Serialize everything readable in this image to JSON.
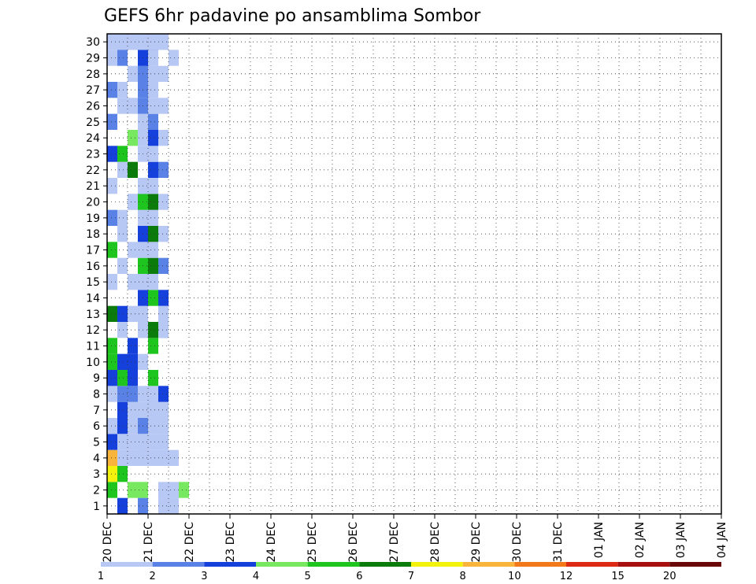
{
  "chart_data": {
    "type": "heatmap",
    "title": "GEFS 6hr padavine po ansamblima Sombor",
    "xlabel": "",
    "ylabel": "",
    "x_ticks": [
      "20 DEC",
      "21 DEC",
      "22 DEC",
      "23 DEC",
      "24 DEC",
      "25 DEC",
      "26 DEC",
      "27 DEC",
      "28 DEC",
      "29 DEC",
      "30 DEC",
      "31 DEC",
      "01 JAN",
      "02 JAN",
      "03 JAN",
      "04 JAN"
    ],
    "x_range_steps": [
      0,
      60
    ],
    "y_ticks": [
      1,
      2,
      3,
      4,
      5,
      6,
      7,
      8,
      9,
      10,
      11,
      12,
      13,
      14,
      15,
      16,
      17,
      18,
      19,
      20,
      21,
      22,
      23,
      24,
      25,
      26,
      27,
      28,
      29,
      30
    ],
    "y_range": [
      0,
      30
    ],
    "grid": true,
    "colorbar": {
      "labels": [
        "1",
        "2",
        "3",
        "4",
        "5",
        "6",
        "7",
        "8",
        "10",
        "12",
        "15",
        "20"
      ],
      "colors": [
        "#b8c8f4",
        "#5a82e6",
        "#1640dc",
        "#78e860",
        "#1ec51e",
        "#0b7b0b",
        "#f2f20c",
        "#f9b43c",
        "#f3781a",
        "#dc2a14",
        "#a80f0f",
        "#6a0808"
      ]
    },
    "cells": [
      [
        1,
        0,
        3
      ],
      [
        2,
        1,
        4
      ],
      [
        2,
        3,
        1
      ],
      [
        1,
        4,
        1
      ],
      [
        3,
        11,
        1
      ],
      [
        2,
        19,
        1
      ],
      [
        3,
        27,
        2
      ],
      [
        6,
        0,
        1
      ],
      [
        1,
        29,
        2
      ],
      [
        0,
        1,
        5
      ],
      [
        3,
        1,
        4
      ],
      [
        3,
        3,
        1
      ],
      [
        2,
        4,
        1
      ],
      [
        5,
        0,
        1
      ],
      [
        3,
        19,
        1
      ],
      [
        6,
        28,
        1
      ],
      [
        0,
        2,
        7
      ],
      [
        1,
        2,
        5
      ],
      [
        3,
        3,
        1
      ],
      [
        2,
        4,
        1
      ],
      [
        5,
        1,
        1
      ],
      [
        6,
        1,
        1
      ],
      [
        7,
        1,
        4
      ],
      [
        6,
        0,
        1
      ],
      [
        0,
        3,
        8
      ],
      [
        1,
        3,
        1
      ],
      [
        3,
        3,
        1
      ],
      [
        1,
        5,
        1
      ],
      [
        4,
        4,
        1
      ],
      [
        5,
        3,
        1
      ],
      [
        3,
        0,
        2
      ],
      [
        5,
        0,
        1
      ],
      [
        0,
        4,
        3
      ],
      [
        1,
        5,
        3
      ],
      [
        2,
        6,
        1
      ],
      [
        2,
        5,
        1
      ],
      [
        5,
        4,
        1
      ],
      [
        6,
        3,
        1
      ],
      [
        1,
        4,
        1
      ],
      [
        4,
        3,
        1
      ],
      [
        0,
        5,
        1
      ],
      [
        1,
        6,
        3
      ],
      [
        2,
        6,
        1
      ],
      [
        3,
        5,
        2
      ],
      [
        4,
        5,
        1
      ],
      [
        5,
        4,
        1
      ],
      [
        4,
        6,
        2
      ],
      [
        3,
        4,
        1
      ],
      [
        0,
        7,
        1
      ],
      [
        1,
        7,
        2
      ],
      [
        2,
        7,
        2
      ],
      [
        3,
        6,
        1
      ],
      [
        4,
        6,
        1
      ],
      [
        5,
        5,
        1
      ],
      [
        4,
        7,
        1
      ],
      [
        5,
        6,
        1
      ],
      [
        0,
        8,
        3
      ],
      [
        1,
        8,
        5
      ],
      [
        2,
        8,
        3
      ],
      [
        3,
        7,
        1
      ],
      [
        4,
        8,
        5
      ],
      [
        5,
        7,
        3
      ],
      [
        1,
        9,
        3
      ],
      [
        2,
        9,
        3
      ],
      [
        0,
        9,
        5
      ],
      [
        3,
        9,
        1
      ],
      [
        2,
        10,
        3
      ],
      [
        4,
        10,
        5
      ],
      [
        5,
        11,
        2
      ],
      [
        3,
        11,
        1
      ],
      [
        0,
        10,
        5
      ],
      [
        1,
        11,
        1
      ],
      [
        4,
        11,
        6
      ],
      [
        5,
        11,
        1
      ],
      [
        3,
        12,
        1
      ],
      [
        5,
        12,
        1
      ],
      [
        0,
        12,
        6
      ],
      [
        1,
        12,
        3
      ],
      [
        2,
        12,
        1
      ],
      [
        3,
        13,
        3
      ],
      [
        4,
        13,
        5
      ],
      [
        5,
        13,
        3
      ],
      [
        3,
        14,
        1
      ],
      [
        4,
        14,
        1
      ],
      [
        0,
        14,
        1
      ],
      [
        1,
        15,
        1
      ],
      [
        2,
        14,
        1
      ],
      [
        3,
        15,
        5
      ],
      [
        4,
        15,
        6
      ],
      [
        5,
        15,
        2
      ],
      [
        3,
        16,
        1
      ],
      [
        4,
        16,
        1
      ],
      [
        0,
        16,
        5
      ],
      [
        1,
        17,
        1
      ],
      [
        2,
        16,
        1
      ],
      [
        3,
        17,
        3
      ],
      [
        4,
        17,
        6
      ],
      [
        5,
        17,
        1
      ],
      [
        3,
        18,
        1
      ],
      [
        4,
        18,
        1
      ],
      [
        0,
        18,
        2
      ],
      [
        1,
        18,
        1
      ],
      [
        2,
        19,
        1
      ],
      [
        3,
        19,
        5
      ],
      [
        4,
        19,
        6
      ],
      [
        5,
        19,
        1
      ],
      [
        3,
        20,
        2
      ],
      [
        4,
        20,
        1
      ],
      [
        0,
        20,
        1
      ],
      [
        1,
        21,
        1
      ],
      [
        2,
        21,
        6
      ],
      [
        3,
        20,
        1
      ],
      [
        4,
        21,
        3
      ],
      [
        5,
        21,
        2
      ],
      [
        3,
        22,
        1
      ],
      [
        4,
        22,
        1
      ],
      [
        0,
        22,
        3
      ],
      [
        1,
        22,
        5
      ],
      [
        2,
        23,
        4
      ],
      [
        3,
        23,
        1
      ],
      [
        4,
        23,
        3
      ],
      [
        5,
        23,
        1
      ],
      [
        3,
        24,
        1
      ],
      [
        4,
        24,
        2
      ],
      [
        0,
        24,
        2
      ],
      [
        1,
        25,
        1
      ],
      [
        2,
        25,
        1
      ],
      [
        3,
        25,
        2
      ],
      [
        4,
        25,
        1
      ],
      [
        5,
        25,
        1
      ],
      [
        3,
        26,
        2
      ],
      [
        4,
        26,
        1
      ],
      [
        0,
        26,
        2
      ],
      [
        1,
        26,
        1
      ],
      [
        2,
        27,
        1
      ],
      [
        3,
        27,
        2
      ],
      [
        4,
        27,
        1
      ],
      [
        5,
        27,
        1
      ],
      [
        3,
        28,
        3
      ],
      [
        4,
        28,
        1
      ],
      [
        0,
        28,
        1
      ],
      [
        1,
        28,
        2
      ],
      [
        2,
        29,
        1
      ],
      [
        3,
        29,
        2
      ],
      [
        4,
        29,
        3
      ],
      [
        5,
        29,
        1
      ],
      [
        3,
        30,
        1
      ],
      [
        4,
        30,
        2
      ],
      [
        0,
        30,
        1
      ],
      [
        1,
        30,
        1
      ],
      [
        2,
        30,
        1
      ],
      [
        3,
        30,
        2
      ],
      [
        4,
        29,
        1
      ],
      [
        5,
        30,
        1
      ],
      [
        3,
        29,
        1
      ],
      [
        4,
        28,
        1
      ]
    ]
  }
}
